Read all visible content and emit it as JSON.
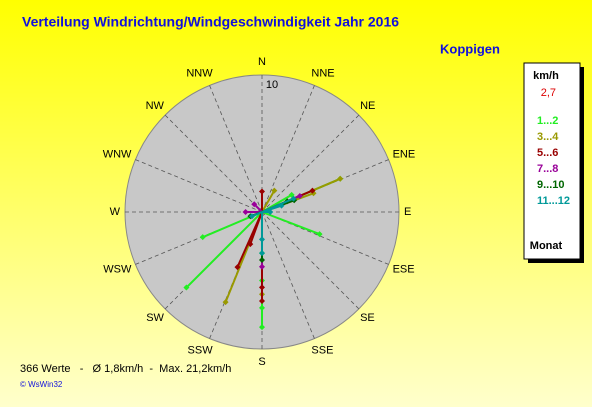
{
  "chart_data": {
    "type": "polar_scatter",
    "title": "Verteilung Windrichtung/Windgeschwindigkeit  Jahr 2016",
    "subtitle": "Koppigen",
    "directions": [
      "N",
      "NNE",
      "NE",
      "ENE",
      "E",
      "ESE",
      "SE",
      "SSE",
      "S",
      "SSW",
      "SW",
      "WSW",
      "W",
      "WNW",
      "NW",
      "NNW"
    ],
    "rlim": [
      0,
      10
    ],
    "rticks": [
      10
    ],
    "legend_title": "km/h",
    "legend_value": "2,7",
    "legend_footer": "Monat",
    "footer": "366 Werte   -   Ø 1,8km/h  -  Max. 21,2km/h",
    "copyright": "© WsWin32",
    "series": [
      {
        "name": "1...2",
        "color": "#22ee22",
        "x": [
          180,
          180,
          180,
          180,
          225,
          67,
          111,
          247,
          60
        ],
        "values": [
          8.4,
          7,
          5,
          3,
          7.8,
          6.2,
          4.5,
          4.7,
          2.5
        ]
      },
      {
        "name": "3...4",
        "color": "#999900",
        "x": [
          67,
          202,
          180,
          30,
          70
        ],
        "values": [
          6.2,
          7.1,
          6,
          1.8,
          4
        ]
      },
      {
        "name": "5...6",
        "color": "#990000",
        "x": [
          204,
          180,
          180,
          67,
          0,
          200
        ],
        "values": [
          4.4,
          5.5,
          6.5,
          4,
          1.5,
          2.5
        ]
      },
      {
        "name": "7...8",
        "color": "#990099",
        "x": [
          180,
          270,
          67,
          315
        ],
        "values": [
          4,
          1.2,
          3,
          0.8
        ]
      },
      {
        "name": "9...10",
        "color": "#006600",
        "x": [
          180,
          67,
          70,
          250
        ],
        "values": [
          3.5,
          2,
          2.5,
          0.9
        ]
      },
      {
        "name": "11...12",
        "color": "#009999",
        "x": [
          180,
          180,
          247,
          67,
          72,
          90
        ],
        "values": [
          2,
          3,
          0.8,
          2.5,
          1.5,
          0.6
        ]
      }
    ]
  }
}
